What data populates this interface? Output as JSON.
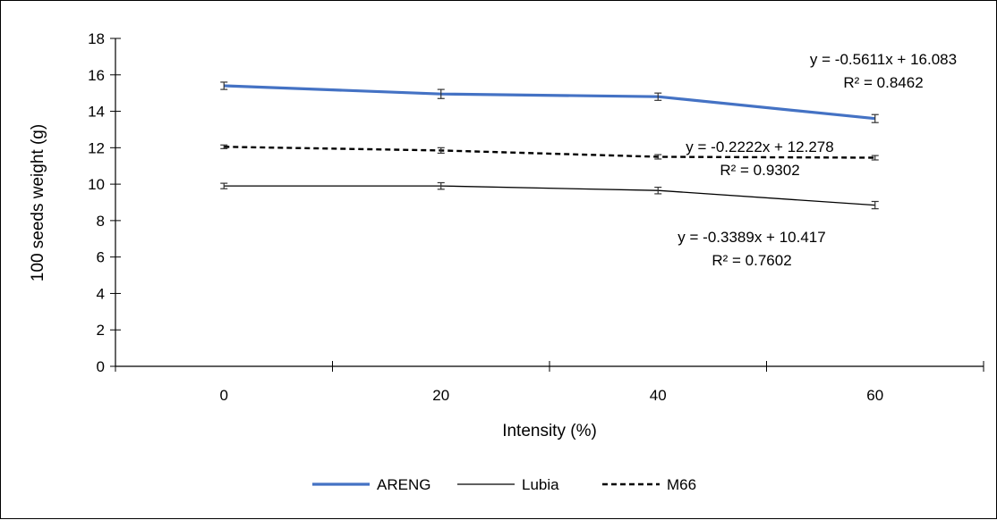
{
  "chart_data": {
    "type": "line",
    "xlabel": "Intensity (%)",
    "ylabel": "100 seeds weight (g)",
    "x": [
      0,
      20,
      40,
      60
    ],
    "xlim": [
      -10,
      70
    ],
    "ylim": [
      0,
      18
    ],
    "x_ticks": [
      0,
      20,
      40,
      60
    ],
    "y_ticks": [
      0,
      2,
      4,
      6,
      8,
      10,
      12,
      14,
      16,
      18
    ],
    "series": [
      {
        "name": "ARENG",
        "values": [
          15.4,
          14.95,
          14.8,
          13.6
        ],
        "errors": [
          0.2,
          0.25,
          0.2,
          0.22
        ],
        "color": "#4472C4",
        "style": "solid-thick",
        "trendline": {
          "equation": "y = -0.5611x + 16.083",
          "r2": "R² = 0.8462"
        }
      },
      {
        "name": "Lubia",
        "values": [
          9.9,
          9.9,
          9.65,
          8.85
        ],
        "errors": [
          0.15,
          0.18,
          0.18,
          0.2
        ],
        "color": "#000000",
        "style": "solid-thin",
        "trendline": {
          "equation": "y = -0.3389x + 10.417",
          "r2": "R² = 0.7602"
        }
      },
      {
        "name": "M66",
        "values": [
          12.05,
          11.85,
          11.5,
          11.45
        ],
        "errors": [
          0.1,
          0.15,
          0.12,
          0.12
        ],
        "color": "#000000",
        "style": "dashed",
        "trendline": {
          "equation": "y = -0.2222x + 12.278",
          "r2": "R² = 0.9302"
        }
      }
    ],
    "legend_position": "bottom",
    "grid": false
  }
}
